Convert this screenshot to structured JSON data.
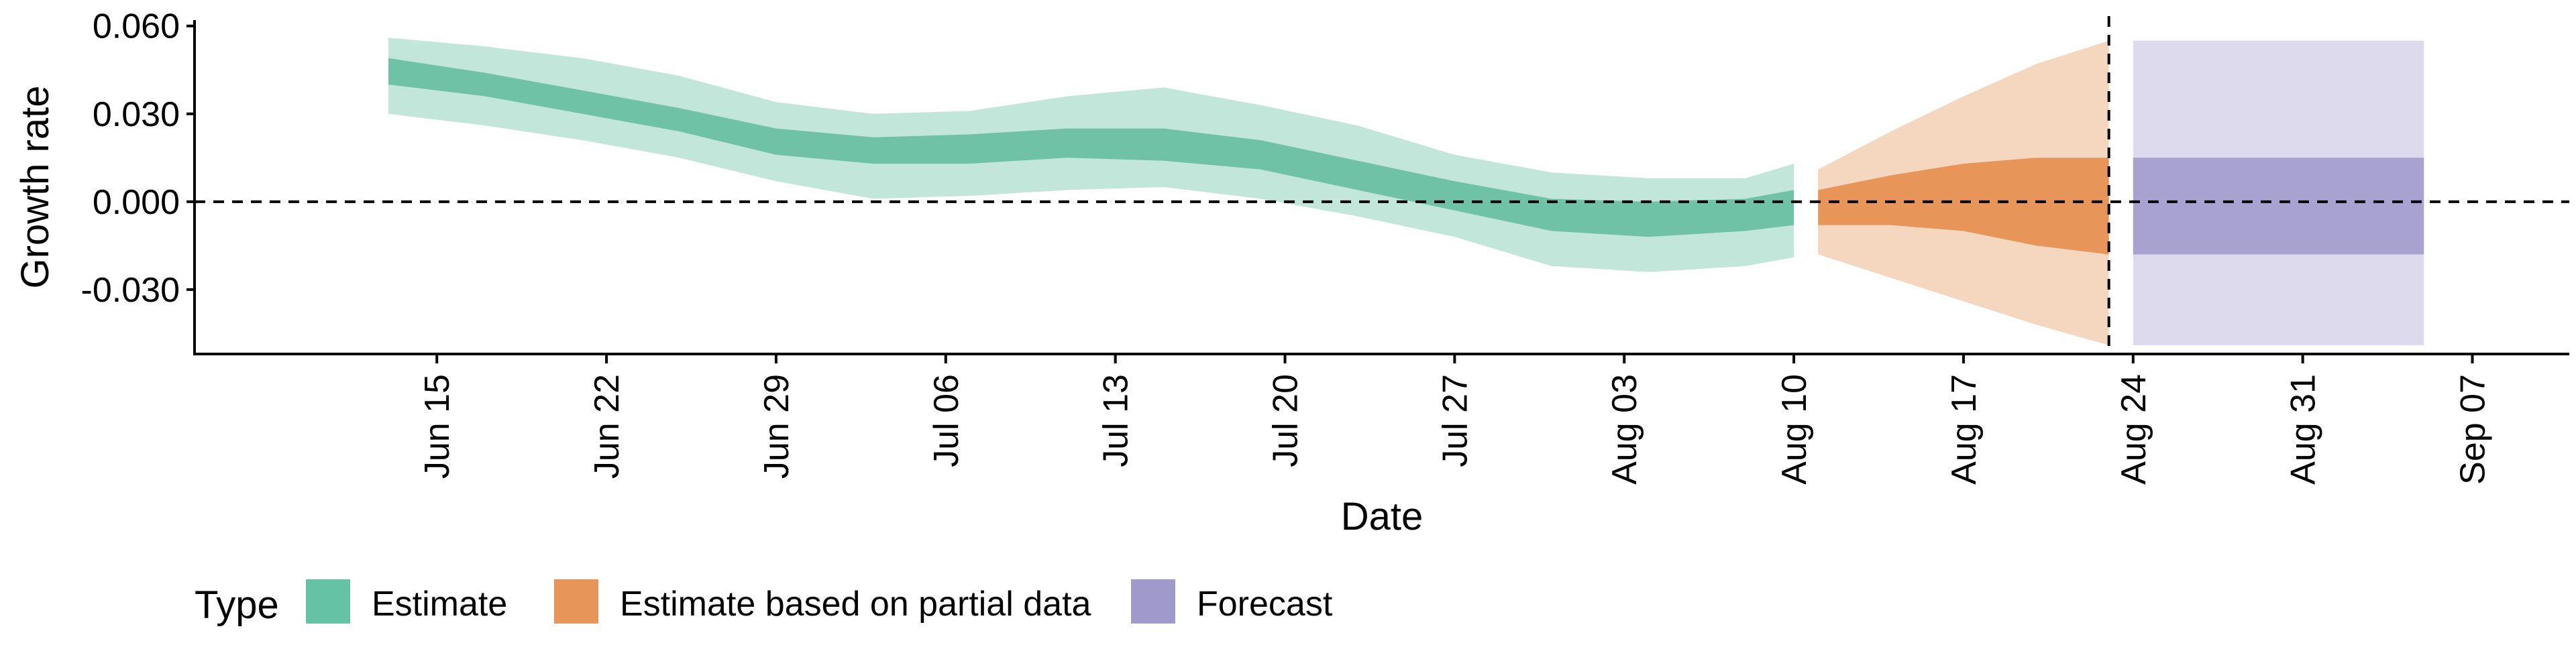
{
  "chart_data": {
    "type": "area",
    "title": "",
    "xlabel": "Date",
    "ylabel": "Growth rate",
    "ylim": [
      -0.052,
      0.062
    ],
    "xlim": [
      "2020-06-05",
      "2020-09-11"
    ],
    "y_ticks": [
      {
        "value": 0.06,
        "label": "0.060"
      },
      {
        "value": 0.03,
        "label": "0.030"
      },
      {
        "value": 0.0,
        "label": "0.000"
      },
      {
        "value": -0.03,
        "label": "-0.030"
      }
    ],
    "x_ticks": [
      {
        "date": "2020-06-15",
        "label": "Jun 15"
      },
      {
        "date": "2020-06-22",
        "label": "Jun 22"
      },
      {
        "date": "2020-06-29",
        "label": "Jun 29"
      },
      {
        "date": "2020-07-06",
        "label": "Jul 06"
      },
      {
        "date": "2020-07-13",
        "label": "Jul 13"
      },
      {
        "date": "2020-07-20",
        "label": "Jul 20"
      },
      {
        "date": "2020-07-27",
        "label": "Jul 27"
      },
      {
        "date": "2020-08-03",
        "label": "Aug 03"
      },
      {
        "date": "2020-08-10",
        "label": "Aug 10"
      },
      {
        "date": "2020-08-17",
        "label": "Aug 17"
      },
      {
        "date": "2020-08-24",
        "label": "Aug 24"
      },
      {
        "date": "2020-08-31",
        "label": "Aug 31"
      },
      {
        "date": "2020-09-07",
        "label": "Sep 07"
      }
    ],
    "reference_lines": [
      {
        "axis": "y",
        "value": 0.0,
        "style": "dashed"
      },
      {
        "axis": "x",
        "date": "2020-08-23",
        "style": "dashed"
      }
    ],
    "grid": false,
    "legend": {
      "position": "bottom-left",
      "title": "Type",
      "entries": [
        {
          "label": "Estimate",
          "color": "#66c2a5"
        },
        {
          "label": "Estimate based on partial data",
          "color": "#e8955a"
        },
        {
          "label": "Forecast",
          "color": "#9f9acb"
        }
      ]
    },
    "series": [
      {
        "name": "Estimate",
        "fill_outer": "#c3e6db",
        "fill_inner": "#70c2a6",
        "points": [
          {
            "date": "2020-06-13",
            "lower90": 0.03,
            "lower50": 0.04,
            "upper50": 0.049,
            "upper90": 0.056
          },
          {
            "date": "2020-06-17",
            "lower90": 0.026,
            "lower50": 0.036,
            "upper50": 0.044,
            "upper90": 0.053
          },
          {
            "date": "2020-06-21",
            "lower90": 0.021,
            "lower50": 0.03,
            "upper50": 0.038,
            "upper90": 0.049
          },
          {
            "date": "2020-06-25",
            "lower90": 0.015,
            "lower50": 0.024,
            "upper50": 0.032,
            "upper90": 0.043
          },
          {
            "date": "2020-06-29",
            "lower90": 0.007,
            "lower50": 0.016,
            "upper50": 0.025,
            "upper90": 0.034
          },
          {
            "date": "2020-07-03",
            "lower90": 0.001,
            "lower50": 0.013,
            "upper50": 0.022,
            "upper90": 0.03
          },
          {
            "date": "2020-07-07",
            "lower90": 0.002,
            "lower50": 0.013,
            "upper50": 0.023,
            "upper90": 0.031
          },
          {
            "date": "2020-07-11",
            "lower90": 0.004,
            "lower50": 0.015,
            "upper50": 0.025,
            "upper90": 0.036
          },
          {
            "date": "2020-07-15",
            "lower90": 0.005,
            "lower50": 0.014,
            "upper50": 0.025,
            "upper90": 0.039
          },
          {
            "date": "2020-07-19",
            "lower90": 0.001,
            "lower50": 0.011,
            "upper50": 0.021,
            "upper90": 0.033
          },
          {
            "date": "2020-07-23",
            "lower90": -0.005,
            "lower50": 0.004,
            "upper50": 0.014,
            "upper90": 0.026
          },
          {
            "date": "2020-07-27",
            "lower90": -0.012,
            "lower50": -0.003,
            "upper50": 0.007,
            "upper90": 0.016
          },
          {
            "date": "2020-07-31",
            "lower90": -0.022,
            "lower50": -0.01,
            "upper50": 0.001,
            "upper90": 0.01
          },
          {
            "date": "2020-08-04",
            "lower90": -0.024,
            "lower50": -0.012,
            "upper50": 0.0,
            "upper90": 0.008
          },
          {
            "date": "2020-08-08",
            "lower90": -0.022,
            "lower50": -0.01,
            "upper50": 0.001,
            "upper90": 0.008
          },
          {
            "date": "2020-08-10",
            "lower90": -0.019,
            "lower50": -0.008,
            "upper50": 0.004,
            "upper90": 0.013
          }
        ]
      },
      {
        "name": "Estimate based on partial data",
        "fill_outer": "#f5d6bf",
        "fill_inner": "#e8955a",
        "points": [
          {
            "date": "2020-08-11",
            "lower90": -0.018,
            "lower50": -0.008,
            "upper50": 0.004,
            "upper90": 0.011
          },
          {
            "date": "2020-08-14",
            "lower90": -0.026,
            "lower50": -0.008,
            "upper50": 0.009,
            "upper90": 0.024
          },
          {
            "date": "2020-08-17",
            "lower90": -0.034,
            "lower50": -0.01,
            "upper50": 0.013,
            "upper90": 0.036
          },
          {
            "date": "2020-08-20",
            "lower90": -0.042,
            "lower50": -0.015,
            "upper50": 0.015,
            "upper90": 0.047
          },
          {
            "date": "2020-08-23",
            "lower90": -0.049,
            "lower50": -0.018,
            "upper50": 0.015,
            "upper90": 0.055
          }
        ]
      },
      {
        "name": "Forecast",
        "fill_outer": "#dcdaec",
        "fill_inner": "#a8a2d0",
        "points": [
          {
            "date": "2020-08-24",
            "lower90": -0.049,
            "lower50": -0.018,
            "upper50": 0.015,
            "upper90": 0.055
          },
          {
            "date": "2020-09-05",
            "lower90": -0.049,
            "lower50": -0.018,
            "upper50": 0.015,
            "upper90": 0.055
          }
        ]
      }
    ]
  }
}
